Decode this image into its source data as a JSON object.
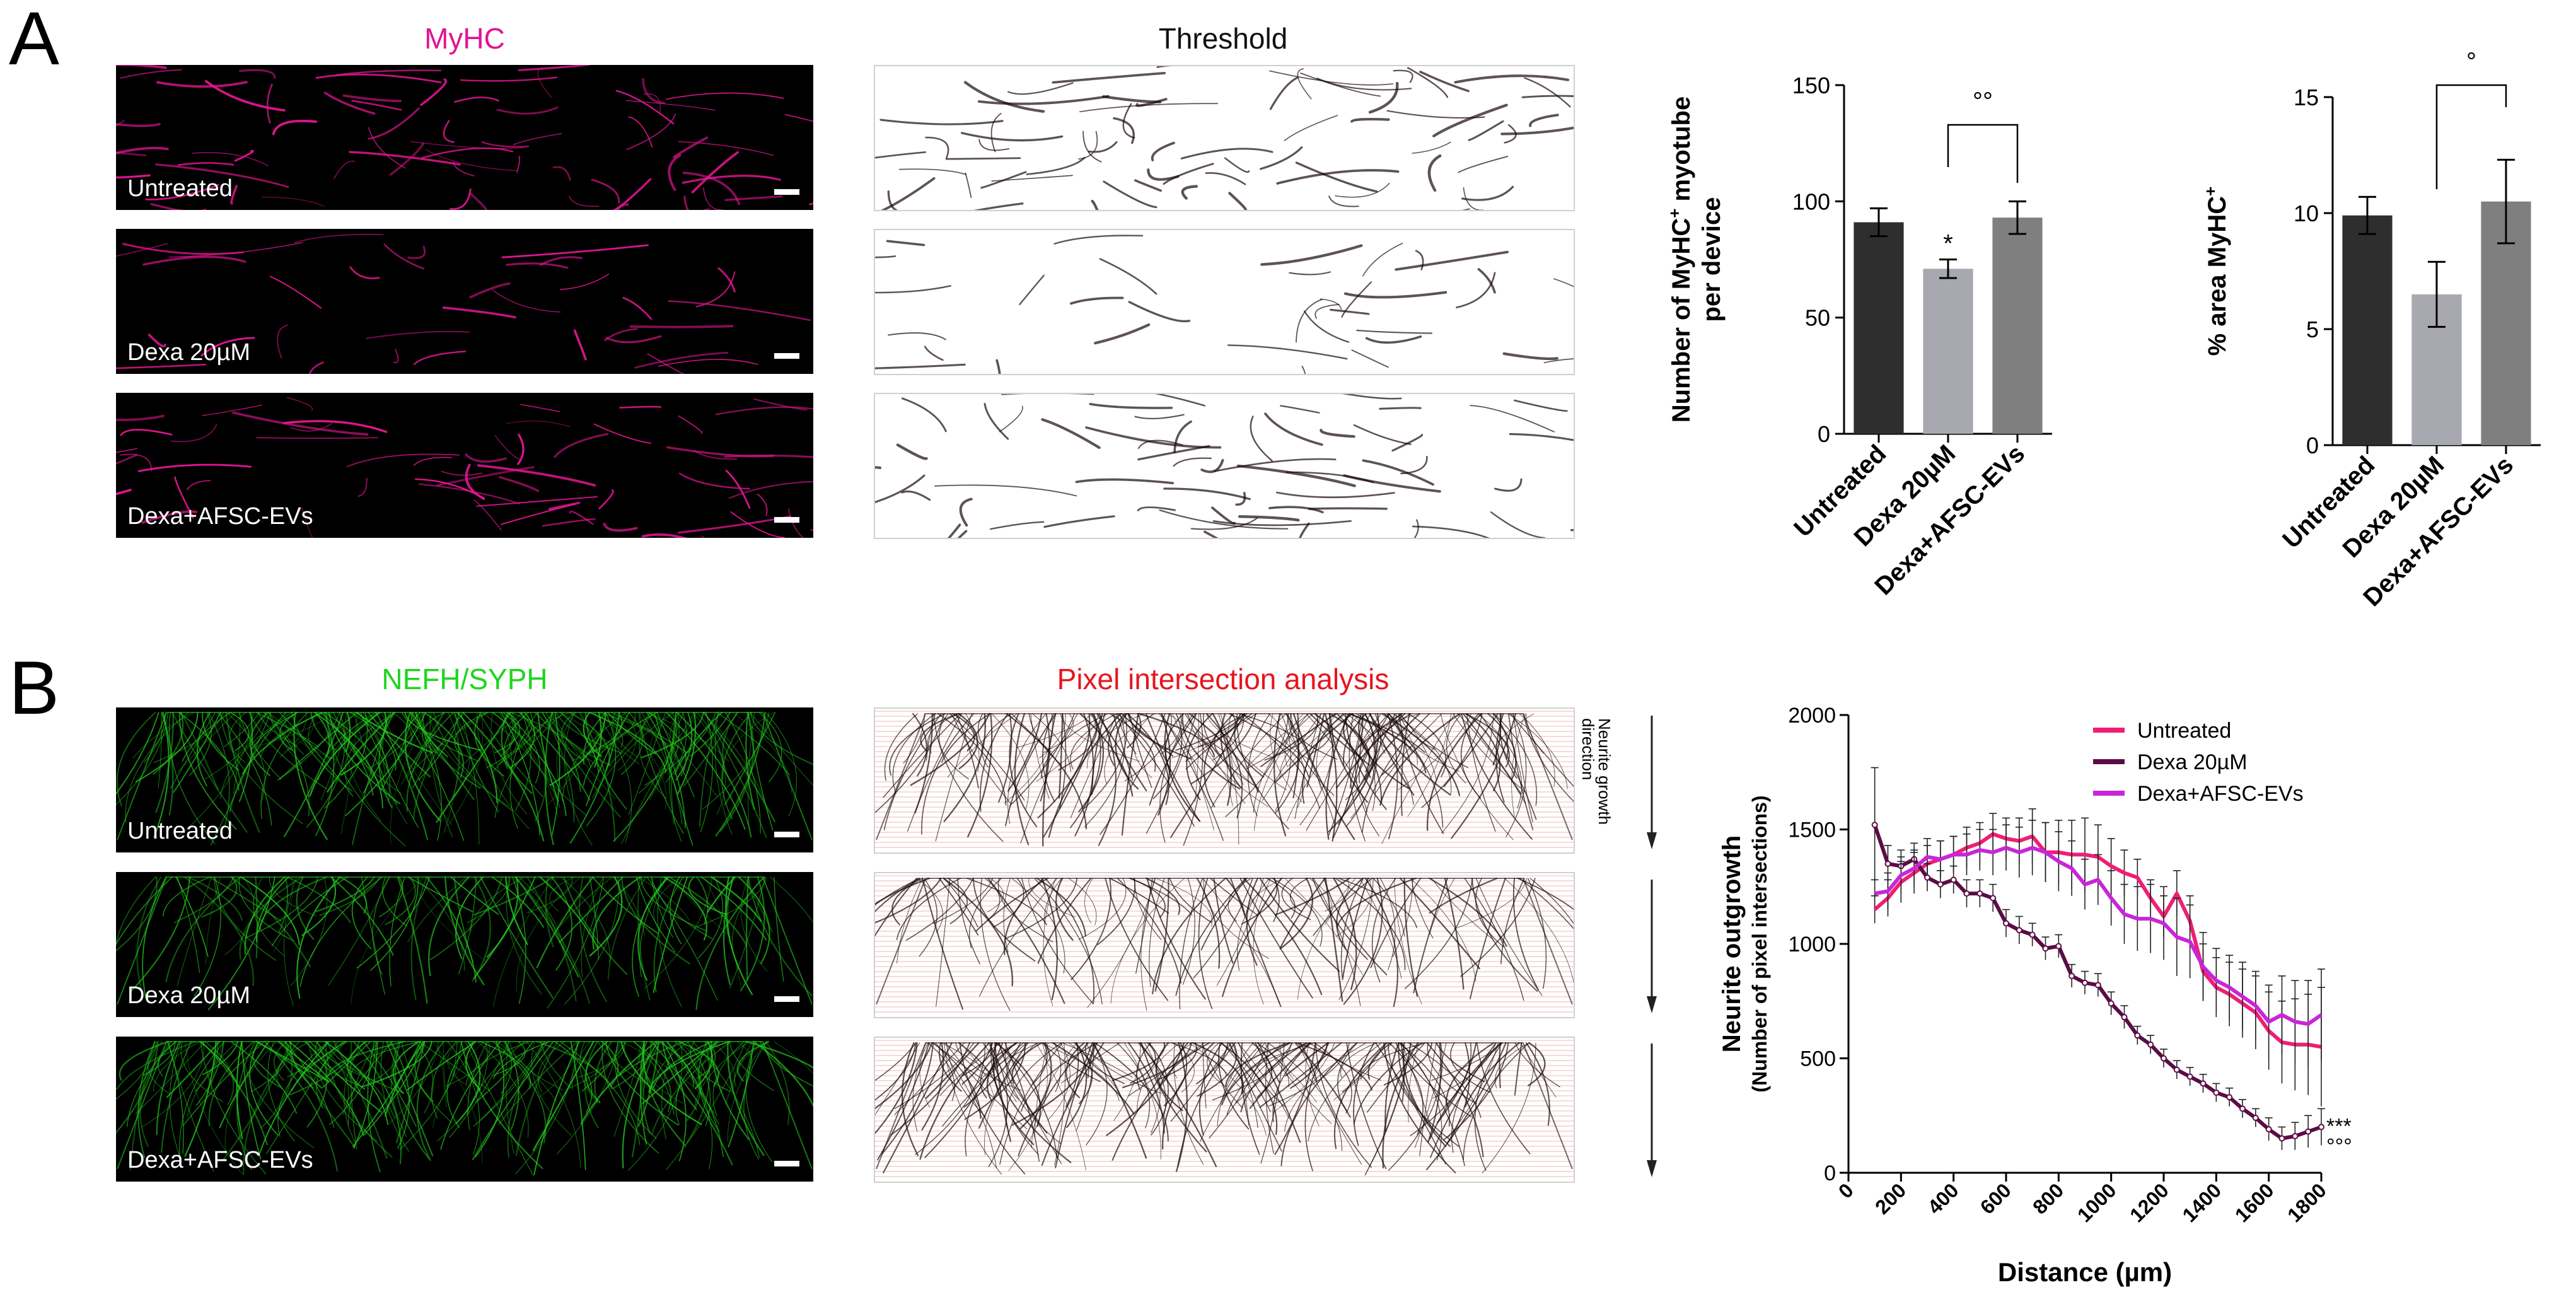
{
  "panels": {
    "a_letter": "A",
    "b_letter": "B"
  },
  "panel_a": {
    "col1_title": "MyHC",
    "col2_title": "Threshold",
    "row_labels": [
      "Untreated",
      "Dexa 20µM",
      "Dexa+AFSC-EVs"
    ],
    "stain_color": "#e0158f",
    "threshold_color": "#111111"
  },
  "panel_b": {
    "col1_title": "NEFH/SYPH",
    "col2_title": "Pixel intersection analysis",
    "col1_title_color": "#1fd51f",
    "col2_title_color": "#e8141e",
    "row_labels": [
      "Untreated",
      "Dexa 20µM",
      "Dexa+AFSC-EVs"
    ],
    "stain_color": "#22c81e",
    "growth_label": [
      "Neurite growth",
      "direction"
    ]
  },
  "chart_data": [
    {
      "type": "bar",
      "categories": [
        "Untreated",
        "Dexa 20µM",
        "Dexa+AFSC-EVs"
      ],
      "values": [
        91,
        71,
        93
      ],
      "errors": [
        6,
        4,
        7
      ],
      "colors": [
        "#2e2e2e",
        "#a8a8b0",
        "#7f7f7f"
      ],
      "ylabel": [
        "Number of MyHC",
        "+",
        " myotube",
        "per device"
      ],
      "ylim": [
        0,
        150
      ],
      "yticks": [
        0,
        50,
        100,
        150
      ],
      "annotations": {
        "star": "*",
        "bracket": "°°"
      }
    },
    {
      "type": "bar",
      "categories": [
        "Untreated",
        "Dexa 20µM",
        "Dexa+AFSC-EVs"
      ],
      "values": [
        9.9,
        6.5,
        10.5
      ],
      "errors": [
        0.8,
        1.4,
        1.8
      ],
      "colors": [
        "#2e2e2e",
        "#a8a8b0",
        "#7f7f7f"
      ],
      "ylabel": [
        "% area MyHC",
        "+"
      ],
      "ylim": [
        0,
        15
      ],
      "yticks": [
        0,
        5,
        10,
        15
      ],
      "annotations": {
        "bracket": "°"
      }
    },
    {
      "type": "line",
      "xlabel": "Distance (µm)",
      "ylabel": [
        "Neurite outgrowth",
        "(Number of pixel intersections)"
      ],
      "xlim": [
        0,
        1800
      ],
      "ylim": [
        0,
        2000
      ],
      "xticks": [
        0,
        200,
        400,
        600,
        800,
        1000,
        1200,
        1400,
        1600,
        1800
      ],
      "yticks": [
        0,
        500,
        1000,
        1500,
        2000
      ],
      "x": [
        100,
        150,
        200,
        250,
        300,
        350,
        400,
        450,
        500,
        550,
        600,
        650,
        700,
        750,
        800,
        850,
        900,
        950,
        1000,
        1050,
        1100,
        1150,
        1200,
        1250,
        1300,
        1350,
        1400,
        1450,
        1500,
        1550,
        1600,
        1650,
        1700,
        1750,
        1800
      ],
      "series": [
        {
          "name": "Untreated",
          "color": "#ee1f74",
          "values": [
            1150,
            1200,
            1270,
            1310,
            1350,
            1370,
            1390,
            1420,
            1440,
            1480,
            1460,
            1450,
            1470,
            1400,
            1400,
            1390,
            1390,
            1380,
            1340,
            1310,
            1290,
            1200,
            1120,
            1220,
            1100,
            880,
            810,
            780,
            740,
            700,
            620,
            570,
            560,
            560,
            550
          ],
          "errors": [
            60,
            80,
            90,
            90,
            80,
            80,
            80,
            90,
            90,
            90,
            90,
            100,
            120,
            130,
            140,
            150,
            160,
            140,
            120,
            100,
            80,
            80,
            90,
            100,
            110,
            120,
            130,
            140,
            150,
            160,
            170,
            180,
            200,
            220,
            260
          ]
        },
        {
          "name": "Dexa 20µM",
          "color": "#5b0c45",
          "values": [
            1520,
            1350,
            1340,
            1370,
            1290,
            1260,
            1280,
            1220,
            1220,
            1200,
            1090,
            1060,
            1040,
            980,
            990,
            860,
            830,
            820,
            740,
            680,
            600,
            560,
            500,
            450,
            420,
            390,
            350,
            330,
            280,
            240,
            190,
            150,
            160,
            180,
            200
          ],
          "errors": [
            250,
            80,
            70,
            70,
            60,
            60,
            60,
            60,
            60,
            60,
            60,
            60,
            50,
            50,
            50,
            50,
            50,
            50,
            50,
            50,
            40,
            40,
            40,
            40,
            40,
            40,
            40,
            40,
            40,
            40,
            50,
            50,
            60,
            70,
            80
          ],
          "markers": true
        },
        {
          "name": "Dexa+AFSC-EVs",
          "color": "#c826d8",
          "values": [
            1220,
            1230,
            1300,
            1330,
            1380,
            1370,
            1390,
            1390,
            1410,
            1400,
            1420,
            1400,
            1420,
            1400,
            1360,
            1330,
            1260,
            1280,
            1200,
            1130,
            1110,
            1110,
            1090,
            1030,
            1010,
            900,
            840,
            810,
            770,
            730,
            660,
            690,
            660,
            650,
            690
          ],
          "errors": [
            60,
            80,
            80,
            80,
            80,
            80,
            80,
            90,
            90,
            100,
            100,
            110,
            120,
            130,
            130,
            120,
            110,
            110,
            120,
            130,
            140,
            150,
            160,
            170,
            160,
            150,
            140,
            140,
            150,
            150,
            160,
            170,
            180,
            190,
            200
          ]
        }
      ],
      "significance": [
        "***",
        "°°°"
      ],
      "legend_position": "top-right"
    }
  ]
}
